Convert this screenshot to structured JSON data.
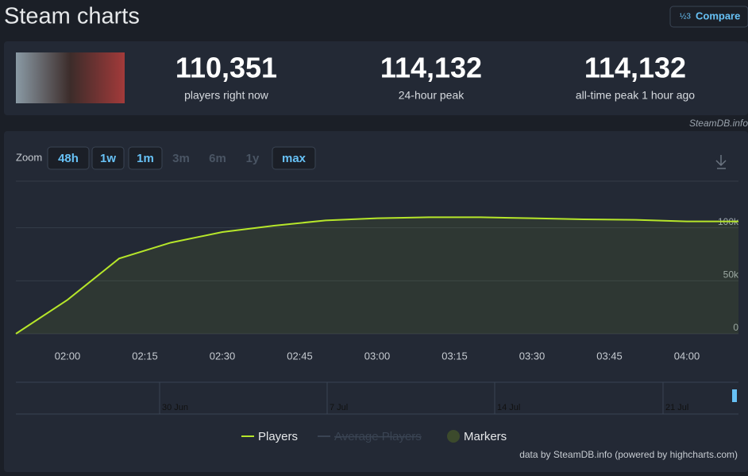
{
  "header": {
    "title": "Steam charts",
    "compare": "Compare",
    "compare_icon": "½3"
  },
  "stats": [
    {
      "value": "110,351",
      "label": "players right now"
    },
    {
      "value": "114,132",
      "label": "24-hour peak"
    },
    {
      "value": "114,132",
      "label": "all-time peak 1 hour ago"
    }
  ],
  "source": "SteamDB.info",
  "zoom": {
    "label": "Zoom",
    "buttons": [
      "48h",
      "1w",
      "1m",
      "3m",
      "6m",
      "1y",
      "max"
    ]
  },
  "chart_data": {
    "type": "line",
    "x": [
      "01:50",
      "02:00",
      "02:10",
      "02:20",
      "02:30",
      "02:40",
      "02:50",
      "03:00",
      "03:10",
      "03:20",
      "03:30",
      "03:40",
      "03:50",
      "04:00",
      "04:10"
    ],
    "series": [
      {
        "name": "Players",
        "color": "#b6e62a",
        "values": [
          0,
          32000,
          71000,
          86000,
          96000,
          102000,
          107000,
          109000,
          110000,
          110000,
          109000,
          108000,
          107500,
          106000,
          106000
        ]
      }
    ],
    "xlim": [
      "01:50",
      "04:10"
    ],
    "xticks": [
      "02:00",
      "02:15",
      "02:30",
      "02:45",
      "03:00",
      "03:15",
      "03:30",
      "03:45",
      "04:00"
    ],
    "ylim": [
      0,
      144000
    ],
    "yticks": [
      0,
      {
        "value": 50000,
        "label": "50k"
      },
      {
        "value": 100000,
        "label": "100k"
      }
    ],
    "grid": true
  },
  "navigator": {
    "labels": [
      "30 Jun",
      "7 Jul",
      "14 Jul",
      "21 Jul"
    ]
  },
  "legend": [
    "Players",
    "Average Players",
    "Markers"
  ],
  "credit": "data by SteamDB.info (powered by highcharts.com)"
}
